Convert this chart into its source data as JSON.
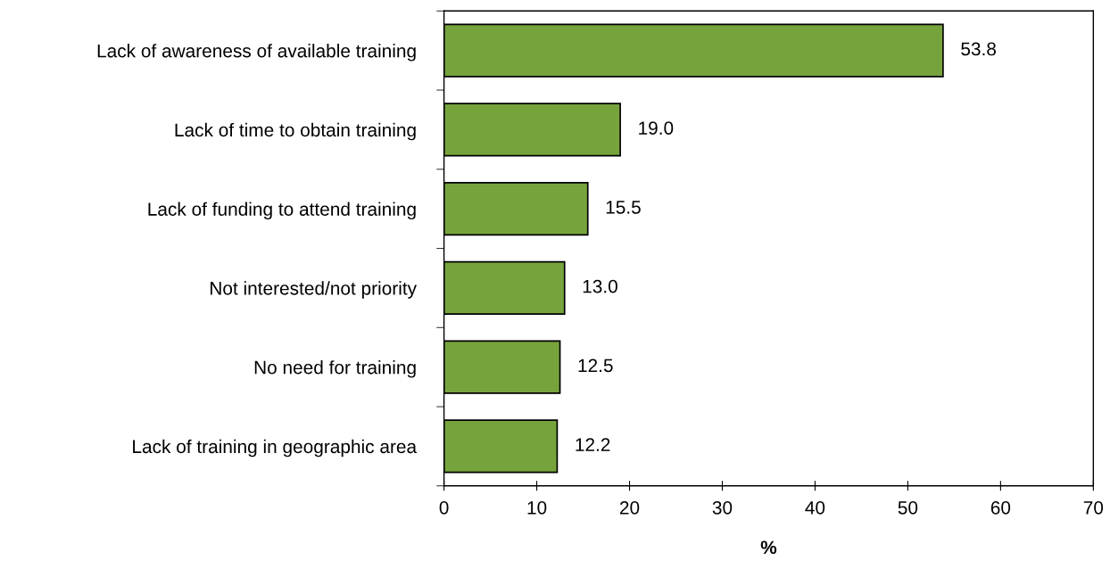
{
  "chart_data": {
    "type": "bar",
    "orientation": "horizontal",
    "xlabel": "%",
    "categories": [
      "Lack of awareness of available training",
      "Lack of time to obtain training",
      "Lack of funding to attend training",
      "Not interested/not priority",
      "No need for training",
      "Lack of training in geographic area"
    ],
    "values": [
      53.8,
      19.0,
      15.5,
      13.0,
      12.5,
      12.2
    ],
    "value_labels": [
      "53.8",
      "19.0",
      "15.5",
      "13.0",
      "12.5",
      "12.2"
    ],
    "color": "#77a33d",
    "xlim": [
      0,
      70
    ],
    "xticks": [
      0,
      10,
      20,
      30,
      40,
      50,
      60,
      70
    ],
    "grid": false
  }
}
